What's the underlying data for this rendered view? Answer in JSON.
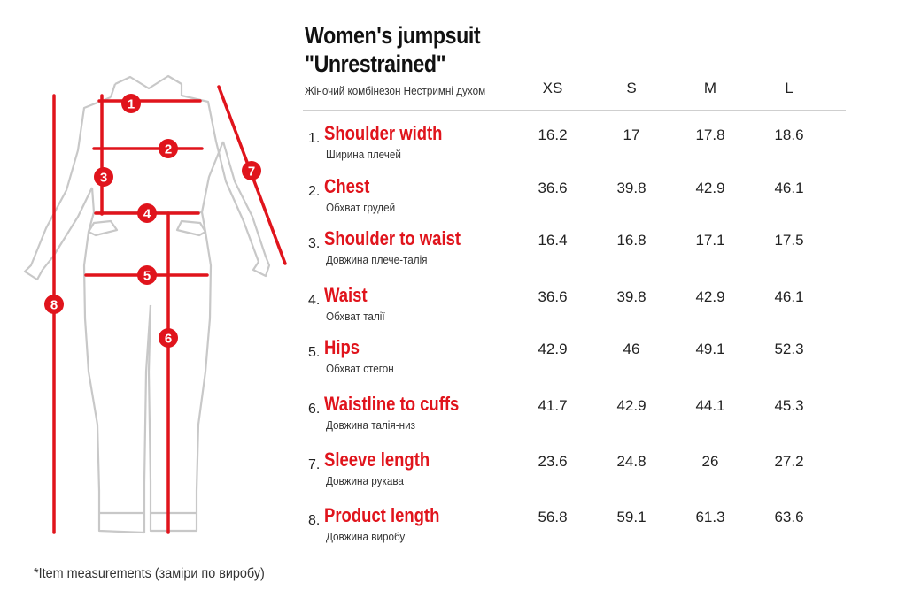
{
  "title_line1": "Women's jumpsuit",
  "title_line2": "\"Unrestrained\"",
  "subtitle": "Жіночий комбінезон Нестримні духом",
  "sizes": [
    "XS",
    "S",
    "M",
    "L"
  ],
  "rows": [
    {
      "num": "1.",
      "name": "Shoulder width",
      "sub": "Ширина плечей",
      "values": [
        "16.2",
        "17",
        "17.8",
        "18.6"
      ]
    },
    {
      "num": "2.",
      "name": "Chest",
      "sub": "Обхват грудей",
      "values": [
        "36.6",
        "39.8",
        "42.9",
        "46.1"
      ]
    },
    {
      "num": "3.",
      "name": "Shoulder to waist",
      "sub": "Довжина плече-талія",
      "values": [
        "16.4",
        "16.8",
        "17.1",
        "17.5"
      ]
    },
    {
      "num": "4.",
      "name": "Waist",
      "sub": "Обхват талії",
      "values": [
        "36.6",
        "39.8",
        "42.9",
        "46.1"
      ]
    },
    {
      "num": "5.",
      "name": "Hips",
      "sub": "Обхват стегон",
      "values": [
        "42.9",
        "46",
        "49.1",
        "52.3"
      ]
    },
    {
      "num": "6.",
      "name": "Waistline to cuffs",
      "sub": "Довжина талія-низ",
      "values": [
        "41.7",
        "42.9",
        "44.1",
        "45.3"
      ]
    },
    {
      "num": "7.",
      "name": "Sleeve length",
      "sub": "Довжина рукава",
      "values": [
        "23.6",
        "24.8",
        "26",
        "27.2"
      ]
    },
    {
      "num": "8.",
      "name": "Product length",
      "sub": "Довжина виробу",
      "values": [
        "56.8",
        "59.1",
        "61.3",
        "63.6"
      ]
    }
  ],
  "markers": [
    "1",
    "2",
    "3",
    "4",
    "5",
    "6",
    "7",
    "8"
  ],
  "footnote": "*Item measurements (заміри по виробу)",
  "colors": {
    "accent": "#e0141c",
    "outline": "#c8c8c8",
    "text": "#1a1a1a"
  }
}
